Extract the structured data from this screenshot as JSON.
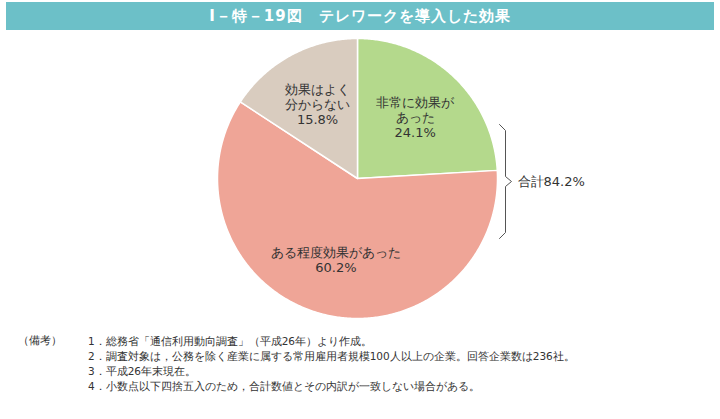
{
  "chart_data": {
    "type": "pie",
    "title": "Ⅰ－特－19図　テレワークを導入した効果",
    "categories": [
      "非常に効果が\nあった",
      "ある程度効果があった",
      "効果はよく\n分からない"
    ],
    "values": [
      24.1,
      60.2,
      15.8
    ],
    "value_labels": [
      "24.1%",
      "60.2%",
      "15.8%"
    ],
    "colors": [
      "#b4d98c",
      "#efa597",
      "#d9ccbf"
    ],
    "data_labels": true,
    "annotation": "合計84.2%",
    "notes_label": "（備考）",
    "notes": [
      "1．総務省「通信利用動向調査」（平成26年）より作成。",
      "2．調査対象は，公務を除く産業に属する常用雇用者規模100人以上の企業。回答企業数は236社。",
      "3．平成26年末現在。",
      "4．小数点以下四捨五入のため，合計数値とその内訳が一致しない場合がある。"
    ]
  }
}
